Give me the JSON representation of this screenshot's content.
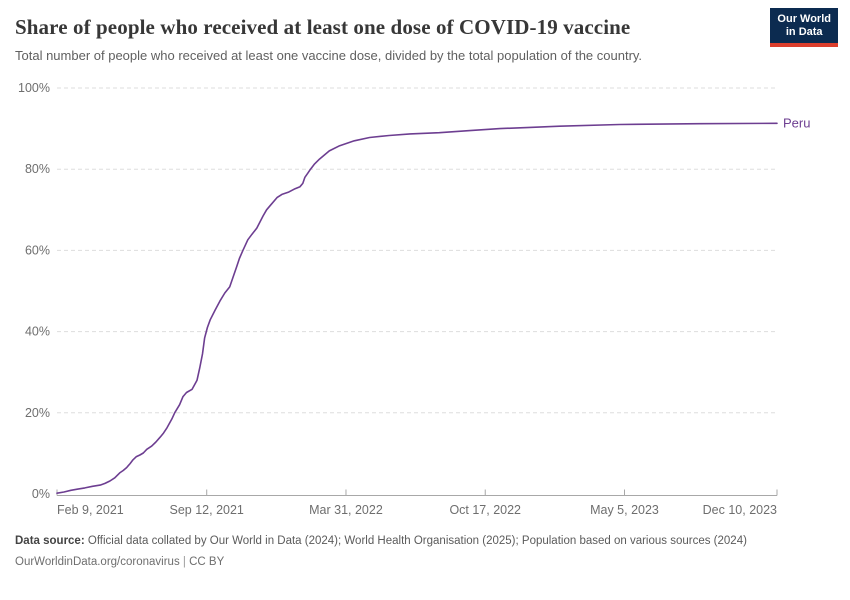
{
  "header": {
    "title": "Share of people who received at least one dose of COVID-19 vaccine",
    "subtitle": "Total number of people who received at least one vaccine dose, divided by the total population of the country.",
    "logo": {
      "line1": "Our World",
      "line2": "in Data",
      "bg_color": "#0c2b50",
      "accent_color": "#dc3e2d"
    }
  },
  "chart_data": {
    "type": "line",
    "title": "Share of people who received at least one dose of COVID-19 vaccine",
    "xlabel": "",
    "ylabel": "",
    "grid": "horizontal-dashed",
    "legend_position": "end-of-line-label",
    "xlim": [
      "2021-02-09",
      "2023-12-10"
    ],
    "ylim": [
      0,
      100
    ],
    "y_ticks": [
      {
        "label": "0%",
        "value": 0
      },
      {
        "label": "20%",
        "value": 20
      },
      {
        "label": "40%",
        "value": 40
      },
      {
        "label": "60%",
        "value": 60
      },
      {
        "label": "80%",
        "value": 80
      },
      {
        "label": "100%",
        "value": 100
      }
    ],
    "x_ticks": [
      {
        "label": "Feb 9, 2021",
        "date": "2021-02-09",
        "anchor": "start"
      },
      {
        "label": "Sep 12, 2021",
        "date": "2021-09-12",
        "anchor": "middle"
      },
      {
        "label": "Mar 31, 2022",
        "date": "2022-03-31",
        "anchor": "middle"
      },
      {
        "label": "Oct 17, 2022",
        "date": "2022-10-17",
        "anchor": "middle"
      },
      {
        "label": "May 5, 2023",
        "date": "2023-05-05",
        "anchor": "middle"
      },
      {
        "label": "Dec 10, 2023",
        "date": "2023-12-10",
        "anchor": "end"
      }
    ],
    "series": [
      {
        "name": "Peru",
        "color": "#6d3e91",
        "points": [
          [
            "2021-02-09",
            0.2
          ],
          [
            "2021-02-19",
            0.5
          ],
          [
            "2021-03-01",
            0.9
          ],
          [
            "2021-03-11",
            1.2
          ],
          [
            "2021-03-21",
            1.5
          ],
          [
            "2021-04-01",
            1.9
          ],
          [
            "2021-04-12",
            2.2
          ],
          [
            "2021-04-19",
            2.6
          ],
          [
            "2021-04-26",
            3.2
          ],
          [
            "2021-05-03",
            4.0
          ],
          [
            "2021-05-10",
            5.2
          ],
          [
            "2021-05-15",
            5.8
          ],
          [
            "2021-05-20",
            6.5
          ],
          [
            "2021-05-25",
            7.5
          ],
          [
            "2021-05-29",
            8.4
          ],
          [
            "2021-06-03",
            9.2
          ],
          [
            "2021-06-08",
            9.6
          ],
          [
            "2021-06-13",
            10.1
          ],
          [
            "2021-06-18",
            11.0
          ],
          [
            "2021-06-25",
            11.8
          ],
          [
            "2021-07-01",
            12.8
          ],
          [
            "2021-07-07",
            14.0
          ],
          [
            "2021-07-12",
            15.0
          ],
          [
            "2021-07-17",
            16.3
          ],
          [
            "2021-07-24",
            18.5
          ],
          [
            "2021-07-28",
            20.0
          ],
          [
            "2021-08-04",
            22.0
          ],
          [
            "2021-08-09",
            24.0
          ],
          [
            "2021-08-14",
            25.0
          ],
          [
            "2021-08-22",
            25.8
          ],
          [
            "2021-08-29",
            28.0
          ],
          [
            "2021-09-02",
            31.0
          ],
          [
            "2021-09-06",
            34.5
          ],
          [
            "2021-09-09",
            38.4
          ],
          [
            "2021-09-13",
            41.0
          ],
          [
            "2021-09-17",
            42.9
          ],
          [
            "2021-09-24",
            45.3
          ],
          [
            "2021-10-01",
            47.5
          ],
          [
            "2021-10-08",
            49.5
          ],
          [
            "2021-10-15",
            51.0
          ],
          [
            "2021-10-20",
            53.5
          ],
          [
            "2021-10-25",
            56.0
          ],
          [
            "2021-10-29",
            58.0
          ],
          [
            "2021-11-03",
            60.0
          ],
          [
            "2021-11-10",
            62.6
          ],
          [
            "2021-11-16",
            64.0
          ],
          [
            "2021-11-23",
            65.5
          ],
          [
            "2021-12-02",
            68.5
          ],
          [
            "2021-12-07",
            70.0
          ],
          [
            "2021-12-12",
            71.0
          ],
          [
            "2021-12-22",
            73.0
          ],
          [
            "2021-12-29",
            73.8
          ],
          [
            "2022-01-07",
            74.3
          ],
          [
            "2022-01-17",
            75.2
          ],
          [
            "2022-01-24",
            75.7
          ],
          [
            "2022-01-28",
            76.5
          ],
          [
            "2022-01-31",
            78.0
          ],
          [
            "2022-02-04",
            79.0
          ],
          [
            "2022-02-08",
            80.0
          ],
          [
            "2022-02-14",
            81.3
          ],
          [
            "2022-02-21",
            82.5
          ],
          [
            "2022-03-07",
            84.5
          ],
          [
            "2022-03-22",
            85.8
          ],
          [
            "2022-04-12",
            87.0
          ],
          [
            "2022-05-04",
            87.8
          ],
          [
            "2022-06-01",
            88.3
          ],
          [
            "2022-07-01",
            88.7
          ],
          [
            "2022-08-12",
            89.0
          ],
          [
            "2022-09-25",
            89.5
          ],
          [
            "2022-11-07",
            90.0
          ],
          [
            "2022-12-20",
            90.3
          ],
          [
            "2023-02-01",
            90.6
          ],
          [
            "2023-04-28",
            91.0
          ],
          [
            "2023-08-21",
            91.2
          ],
          [
            "2023-12-10",
            91.3
          ]
        ]
      }
    ]
  },
  "footer": {
    "source_label": "Data source:",
    "source_text": "Official data collated by Our World in Data (2024); World Health Organisation (2025); Population based on various sources (2024)",
    "license": {
      "link": "OurWorldinData.org/coronavirus",
      "separator": "|",
      "license": "CC BY"
    }
  }
}
